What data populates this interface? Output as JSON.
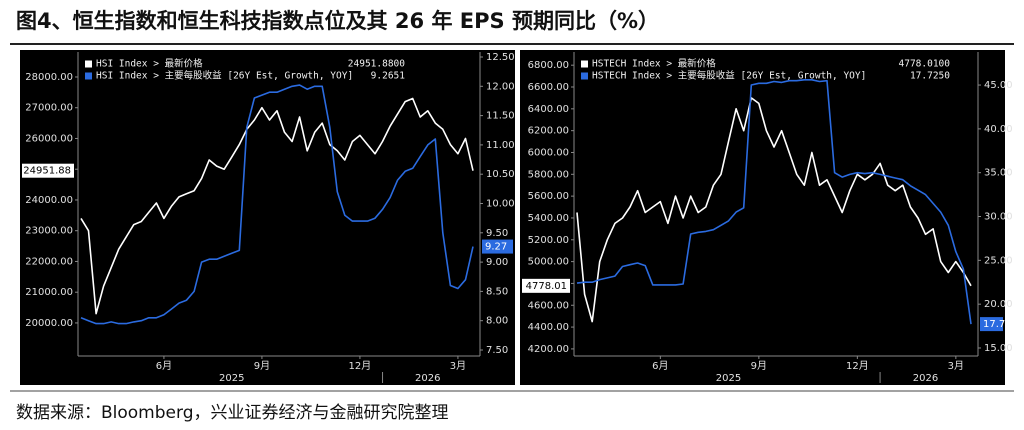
{
  "title": "图4、恒生指数和恒生科技指数点位及其 26 年 EPS 预期同比（%）",
  "source": "数据来源：Bloomberg，兴业证券经济与金融研究院整理",
  "chart_data": [
    {
      "type": "line",
      "categories": [
        null,
        null,
        null,
        null,
        null,
        null,
        null,
        null,
        null,
        null,
        null,
        "6月",
        null,
        null,
        null,
        null,
        null,
        null,
        null,
        null,
        null,
        null,
        null,
        null,
        "9月",
        null,
        null,
        null,
        null,
        null,
        null,
        null,
        null,
        null,
        null,
        null,
        null,
        "12月",
        null,
        null,
        null,
        null,
        null,
        null,
        null,
        null,
        null,
        null,
        null,
        null,
        "3月",
        null,
        null
      ],
      "years": [
        "2025",
        "2026"
      ],
      "background": "#000000",
      "grid": false,
      "ylim": [
        19120,
        28650
      ],
      "yticks": [
        {
          "value": 20000,
          "label": "20000.00"
        },
        {
          "value": 21000,
          "label": "21000.00"
        },
        {
          "value": 22000,
          "label": "22000.00"
        },
        {
          "value": 23000,
          "label": "23000.00"
        },
        {
          "value": 24000,
          "label": "24000.00"
        },
        {
          "value": 25000,
          "label": "25000.00"
        },
        {
          "value": 26000,
          "label": "26000.00"
        },
        {
          "value": 27000,
          "label": "27000.00"
        },
        {
          "value": 28000,
          "label": "28000.00"
        }
      ],
      "y2lim": [
        7.5,
        12.5
      ],
      "y2ticks": [
        {
          "value": 7.5,
          "label": "7.50"
        },
        {
          "value": 8,
          "label": "8.00"
        },
        {
          "value": 8.5,
          "label": "8.50"
        },
        {
          "value": 9,
          "label": "9.00"
        },
        {
          "value": 9.5,
          "label": "9.50"
        },
        {
          "value": 10,
          "label": "10.00"
        },
        {
          "value": 10.5,
          "label": "10.50"
        },
        {
          "value": 11,
          "label": "11.00"
        },
        {
          "value": 11.5,
          "label": "11.50"
        },
        {
          "value": 12,
          "label": "12.00"
        },
        {
          "value": 12.5,
          "label": "12.50"
        }
      ],
      "series": [
        {
          "name": "HSI Index > 最新价格",
          "legend_label": "24951.8800",
          "last_label": "24951.88",
          "color": "#ffffff",
          "values": [
            23400,
            23000,
            20300,
            21200,
            21800,
            22400,
            22800,
            23200,
            23300,
            23600,
            23900,
            23400,
            23800,
            24100,
            24200,
            24300,
            24700,
            25300,
            25100,
            25000,
            25400,
            25800,
            26300,
            26600,
            27000,
            26600,
            26900,
            26200,
            25900,
            26700,
            25600,
            26200,
            26500,
            25800,
            25600,
            25300,
            25900,
            26100,
            25800,
            25500,
            25900,
            26400,
            26800,
            27200,
            27300,
            26700,
            26900,
            26500,
            26300,
            25800,
            25500,
            26000,
            24951.88
          ]
        },
        {
          "name": "HSI Index > 主要每股收益 [26Y Est, Growth, YOY]",
          "legend_label": "9.2651",
          "last_label": "9.27",
          "color": "#2b6be0",
          "axis": "y2",
          "values": [
            8.05,
            8.0,
            7.95,
            7.95,
            7.98,
            7.95,
            7.95,
            7.98,
            8.0,
            8.05,
            8.05,
            8.1,
            8.2,
            8.3,
            8.35,
            8.5,
            9.0,
            9.05,
            9.05,
            9.1,
            9.15,
            9.2,
            11.3,
            11.8,
            11.85,
            11.9,
            11.9,
            11.95,
            12.0,
            12.02,
            11.95,
            12.0,
            12.0,
            11.3,
            10.2,
            9.8,
            9.7,
            9.7,
            9.7,
            9.75,
            9.9,
            10.1,
            10.4,
            10.55,
            10.6,
            10.8,
            11.0,
            11.1,
            9.5,
            8.6,
            8.55,
            8.7,
            9.2651
          ]
        }
      ]
    },
    {
      "type": "line",
      "categories": [
        null,
        null,
        null,
        null,
        null,
        null,
        null,
        null,
        null,
        null,
        null,
        "6月",
        null,
        null,
        null,
        null,
        null,
        null,
        null,
        null,
        null,
        null,
        null,
        null,
        "9月",
        null,
        null,
        null,
        null,
        null,
        null,
        null,
        null,
        null,
        null,
        null,
        null,
        "12月",
        null,
        null,
        null,
        null,
        null,
        null,
        null,
        null,
        null,
        null,
        null,
        null,
        "3月",
        null,
        null
      ],
      "years": [
        "2025",
        "2026"
      ],
      "background": "#000000",
      "grid": false,
      "ylim": [
        4190,
        6875
      ],
      "yticks": [
        {
          "value": 4200,
          "label": "4200.00"
        },
        {
          "value": 4400,
          "label": "4400.00"
        },
        {
          "value": 4600,
          "label": "4600.00"
        },
        {
          "value": 4800,
          "label": "4800.00"
        },
        {
          "value": 5000,
          "label": "5000.00"
        },
        {
          "value": 5200,
          "label": "5200.00"
        },
        {
          "value": 5400,
          "label": "5400.00"
        },
        {
          "value": 5600,
          "label": "5600.00"
        },
        {
          "value": 5800,
          "label": "5800.00"
        },
        {
          "value": 6000,
          "label": "6000.00"
        },
        {
          "value": 6200,
          "label": "6200.00"
        },
        {
          "value": 6400,
          "label": "6400.00"
        },
        {
          "value": 6600,
          "label": "6600.00"
        },
        {
          "value": 6800,
          "label": "6800.00"
        }
      ],
      "y2lim": [
        14.77,
        48.2
      ],
      "y2ticks": [
        {
          "value": 15,
          "label": "15.00"
        },
        {
          "value": 20,
          "label": "20.00"
        },
        {
          "value": 25,
          "label": "25.00"
        },
        {
          "value": 30,
          "label": "30.00"
        },
        {
          "value": 35,
          "label": "35.00"
        },
        {
          "value": 40,
          "label": "40.00"
        },
        {
          "value": 45,
          "label": "45.00"
        }
      ],
      "series": [
        {
          "name": "HSTECH Index > 最新价格",
          "legend_label": "4778.0100",
          "last_label": "4778.01",
          "color": "#ffffff",
          "values": [
            5450,
            4700,
            4450,
            5000,
            5200,
            5350,
            5400,
            5500,
            5650,
            5450,
            5500,
            5550,
            5350,
            5600,
            5400,
            5600,
            5450,
            5500,
            5700,
            5800,
            6100,
            6400,
            6200,
            6500,
            6450,
            6200,
            6050,
            6200,
            6000,
            5800,
            5700,
            6000,
            5700,
            5750,
            5600,
            5450,
            5650,
            5800,
            5750,
            5800,
            5900,
            5700,
            5650,
            5700,
            5500,
            5400,
            5250,
            5300,
            5000,
            4900,
            5000,
            4900,
            4778.01
          ]
        },
        {
          "name": "HSTECH Index > 主要每股收益 [26Y Est, Growth, YOY]",
          "legend_label": "17.7250",
          "last_label": "17.73",
          "color": "#2b6be0",
          "axis": "y2",
          "values": [
            22.4,
            22.5,
            22.5,
            22.8,
            23,
            23.2,
            24.3,
            24.5,
            24.7,
            24.4,
            22.2,
            22.2,
            22.2,
            22.2,
            22.3,
            28,
            28.2,
            28.3,
            28.5,
            29,
            29.5,
            30.5,
            31,
            45,
            45.2,
            45.2,
            45.4,
            45.3,
            45.5,
            45.5,
            45.6,
            45.6,
            45.4,
            45.5,
            35,
            34.5,
            34.8,
            35,
            34.9,
            35,
            34.8,
            34.6,
            34.4,
            34.2,
            33.5,
            33,
            32.5,
            31.5,
            30.5,
            29,
            26,
            24,
            17.725
          ]
        }
      ]
    }
  ]
}
